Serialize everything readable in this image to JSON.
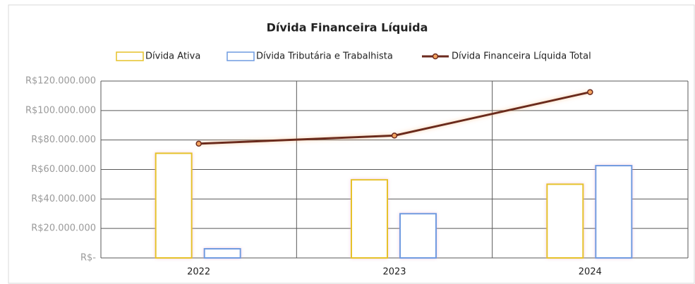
{
  "chart_data": {
    "type": "bar",
    "title": "Dívida Financeira  Líquida",
    "categories": [
      "2022",
      "2023",
      "2024"
    ],
    "series": [
      {
        "name": "Dívida Ativa",
        "type": "bar",
        "color": "#e6c229",
        "values": [
          71000000,
          53000000,
          50000000
        ]
      },
      {
        "name": "Dívida Tributária e Trabalhista",
        "type": "bar",
        "color": "#6f9be0",
        "values": [
          6200000,
          30000000,
          62600000
        ]
      },
      {
        "name": "Dívida Financeira Líquida Total",
        "type": "line",
        "color": "#6b2a1e",
        "values": [
          77500000,
          83000000,
          112500000
        ]
      }
    ],
    "ylim": [
      0,
      120000000
    ],
    "yticks": [
      {
        "value": 0,
        "label": "R$-"
      },
      {
        "value": 20000000,
        "label": "R$20.000.000"
      },
      {
        "value": 40000000,
        "label": "R$40.000.000"
      },
      {
        "value": 60000000,
        "label": "R$60.000.000"
      },
      {
        "value": 80000000,
        "label": "R$80.000.000"
      },
      {
        "value": 100000000,
        "label": "R$100.000.000"
      },
      {
        "value": 120000000,
        "label": "R$120.000.000"
      }
    ],
    "grid": true,
    "legend": "top"
  }
}
